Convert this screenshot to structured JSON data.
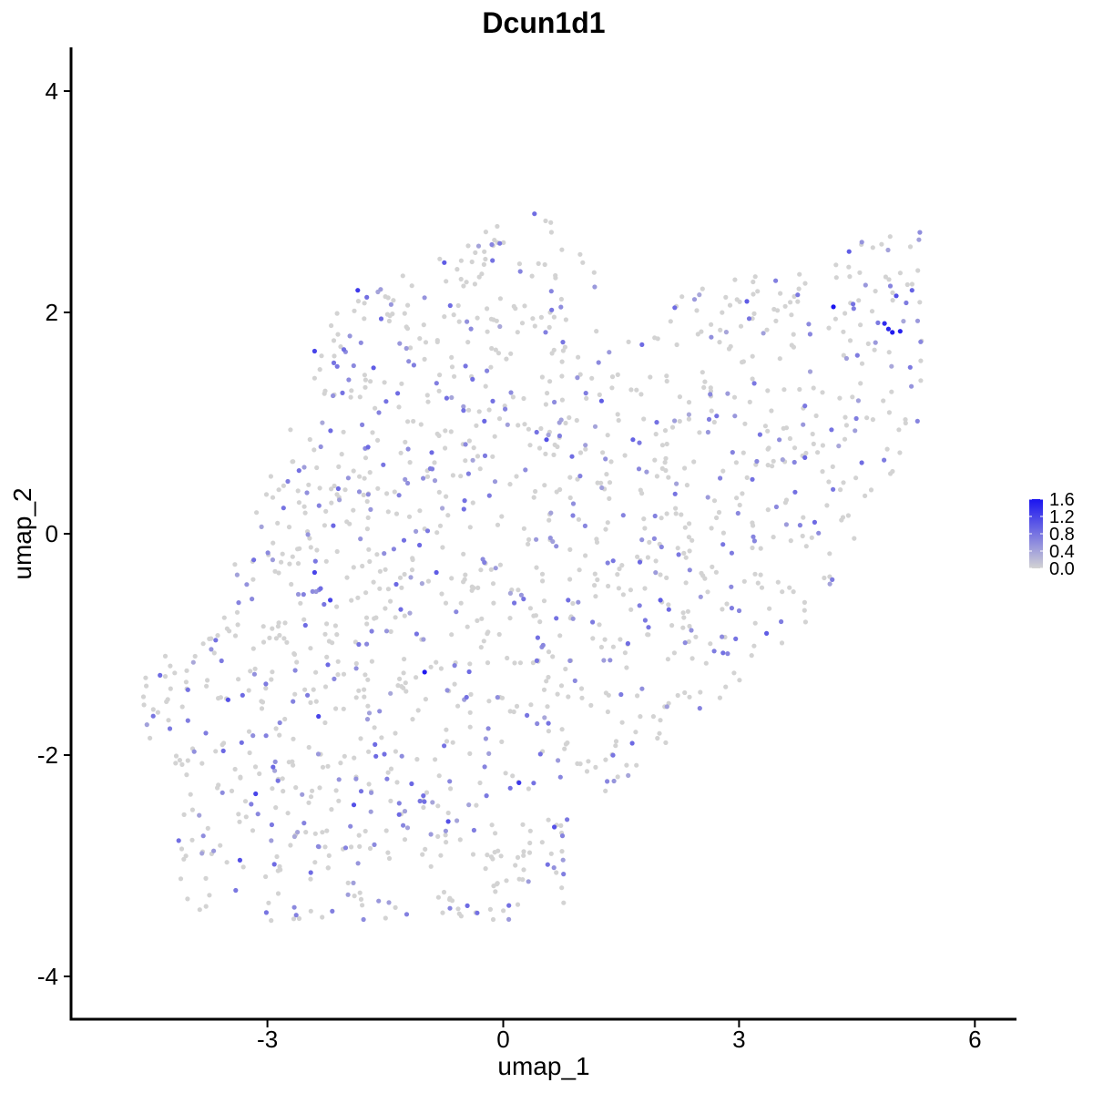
{
  "chart_data": {
    "type": "scatter",
    "title": "Dcun1d1",
    "xlabel": "umap_1",
    "ylabel": "umap_2",
    "xlim": [
      -5.3,
      6.6
    ],
    "ylim": [
      -4.3,
      4.4
    ],
    "x_ticks": [
      -3,
      0,
      3,
      6
    ],
    "y_ticks": [
      -4,
      -2,
      0,
      2,
      4
    ],
    "grid": false,
    "colors": {
      "low": "#d3d3d3",
      "high": "#1a14f0"
    },
    "legend": {
      "position": "right",
      "type": "colorbar",
      "range": [
        0,
        1.6
      ],
      "ticks": [
        "1.6",
        "1.2",
        "0.8",
        "0.4",
        "0.0"
      ]
    },
    "highlight_points": [
      {
        "x": 4.2,
        "y": 2.05,
        "v": 1.6
      },
      {
        "x": 4.95,
        "y": 1.82,
        "v": 1.55
      },
      {
        "x": 5.05,
        "y": 1.83,
        "v": 1.5
      },
      {
        "x": 4.85,
        "y": 1.9,
        "v": 1.4
      },
      {
        "x": 4.9,
        "y": 1.85,
        "v": 1.45
      },
      {
        "x": 5.0,
        "y": 2.15,
        "v": 1.1
      },
      {
        "x": -1.0,
        "y": -1.25,
        "v": 1.55
      },
      {
        "x": 0.2,
        "y": -2.25,
        "v": 1.3
      },
      {
        "x": -1.85,
        "y": 2.2,
        "v": 1.3
      },
      {
        "x": 0.55,
        "y": 0.85,
        "v": 1.1
      },
      {
        "x": -2.4,
        "y": 1.65,
        "v": 1.2
      },
      {
        "x": -2.4,
        "y": -0.35,
        "v": 1.2
      },
      {
        "x": -2.2,
        "y": -0.6,
        "v": 1.2
      },
      {
        "x": -2.35,
        "y": -1.65,
        "v": 1.2
      },
      {
        "x": -3.15,
        "y": -2.35,
        "v": 1.2
      },
      {
        "x": -3.35,
        "y": -2.95,
        "v": 1.1
      },
      {
        "x": -3.5,
        "y": -1.5,
        "v": 1.1
      },
      {
        "x": -1.9,
        "y": -2.45,
        "v": 1.1
      },
      {
        "x": -0.7,
        "y": -2.6,
        "v": 1.1
      },
      {
        "x": 0.65,
        "y": -2.65,
        "v": 1.1
      },
      {
        "x": 2.0,
        "y": -0.6,
        "v": 1.0
      },
      {
        "x": 3.35,
        "y": -0.9,
        "v": 1.0
      },
      {
        "x": 3.1,
        "y": 2.1,
        "v": 1.0
      },
      {
        "x": 4.4,
        "y": 2.55,
        "v": 1.0
      },
      {
        "x": -0.75,
        "y": 2.45,
        "v": 1.0
      },
      {
        "x": -1.65,
        "y": 1.5,
        "v": 1.0
      },
      {
        "x": -0.85,
        "y": -0.35,
        "v": 1.0
      },
      {
        "x": 1.25,
        "y": 1.2,
        "v": 1.0
      },
      {
        "x": 1.65,
        "y": 0.85,
        "v": 0.95
      },
      {
        "x": 5.2,
        "y": 2.2,
        "v": 0.95
      }
    ]
  }
}
